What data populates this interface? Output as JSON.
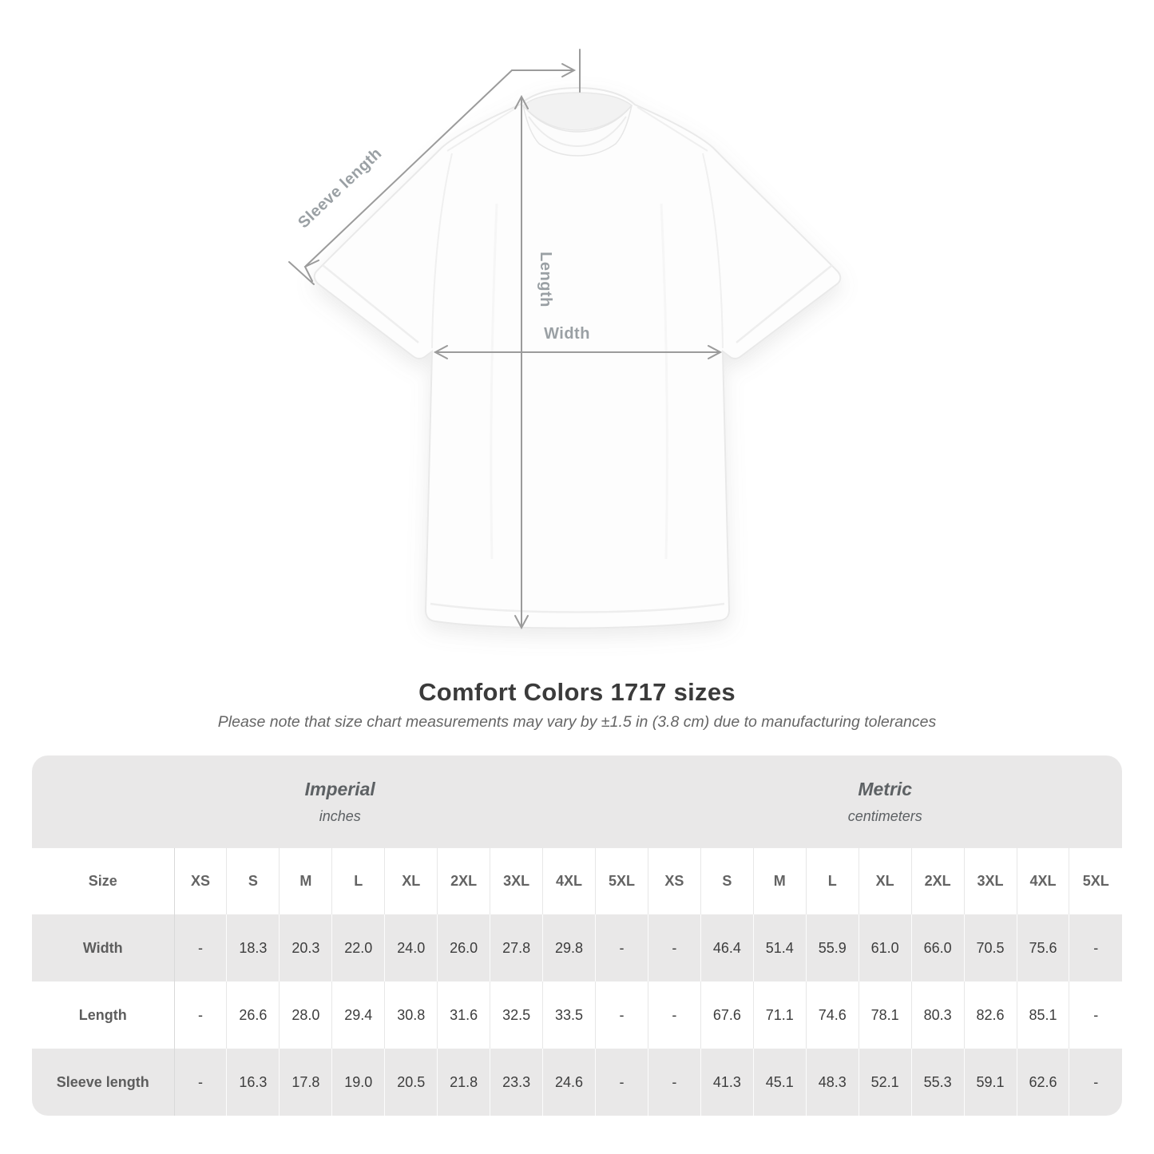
{
  "diagram": {
    "sleeve_length_label": "Sleeve length",
    "length_label": "Length",
    "width_label": "Width"
  },
  "heading": {
    "title": "Comfort Colors 1717 sizes",
    "note": "Please note that size chart measurements may vary by ±1.5 in (3.8 cm) due to manufacturing tolerances"
  },
  "chart_data": {
    "type": "table",
    "title": "Comfort Colors 1717 sizes",
    "unit_groups": [
      {
        "label": "Imperial",
        "sublabel": "inches"
      },
      {
        "label": "Metric",
        "sublabel": "centimeters"
      }
    ],
    "size_column_header": "Size",
    "sizes": [
      "XS",
      "S",
      "M",
      "L",
      "XL",
      "2XL",
      "3XL",
      "4XL",
      "5XL",
      "XS",
      "S",
      "M",
      "L",
      "XL",
      "2XL",
      "3XL",
      "4XL",
      "5XL"
    ],
    "rows": [
      {
        "label": "Width",
        "values": [
          "-",
          "18.3",
          "20.3",
          "22.0",
          "24.0",
          "26.0",
          "27.8",
          "29.8",
          "-",
          "-",
          "46.4",
          "51.4",
          "55.9",
          "61.0",
          "66.0",
          "70.5",
          "75.6",
          "-"
        ]
      },
      {
        "label": "Length",
        "values": [
          "-",
          "26.6",
          "28.0",
          "29.4",
          "30.8",
          "31.6",
          "32.5",
          "33.5",
          "-",
          "-",
          "67.6",
          "71.1",
          "74.6",
          "78.1",
          "80.3",
          "82.6",
          "85.1",
          "-"
        ]
      },
      {
        "label": "Sleeve length",
        "values": [
          "-",
          "16.3",
          "17.8",
          "19.0",
          "20.5",
          "21.8",
          "23.3",
          "24.6",
          "-",
          "-",
          "41.3",
          "45.1",
          "48.3",
          "52.1",
          "55.3",
          "59.1",
          "62.6",
          "-"
        ]
      }
    ]
  },
  "colors": {
    "annotation_line": "#9b9b9b",
    "annotation_label": "#9aa0a4",
    "title_text": "#3b3b3b",
    "note_text": "#666666",
    "table_band_bg": "#e9e8e8",
    "table_alt_row_bg": "#e9e8e8",
    "table_header_text": "#636363",
    "table_value_text": "#3d3d3d"
  }
}
